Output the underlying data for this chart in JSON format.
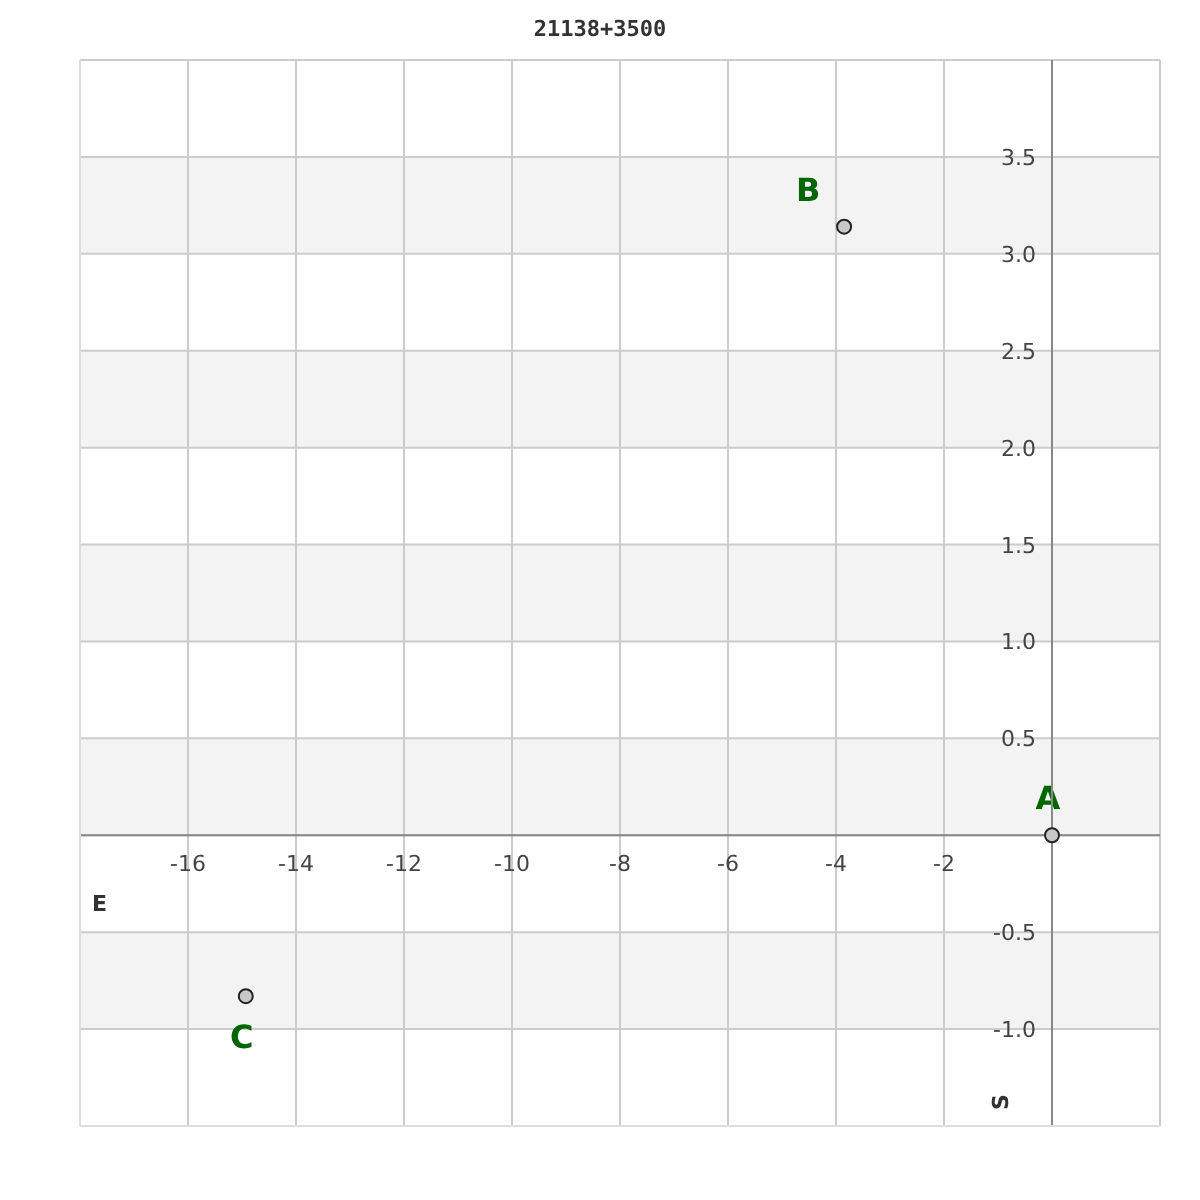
{
  "chart_data": {
    "type": "scatter",
    "title": "21138+3500",
    "xlabel": "E",
    "ylabel": "S",
    "x": [
      0,
      -3.85,
      -14.93
    ],
    "values": [
      0,
      3.14,
      -0.83
    ],
    "color": "#c8c8c8",
    "marker": "circle",
    "annotations": [
      {
        "text": "A",
        "x": 0,
        "y": 0
      },
      {
        "text": "B",
        "x": -3.85,
        "y": 3.14
      },
      {
        "text": "C",
        "x": -14.93,
        "y": -0.83
      }
    ],
    "xlim": [
      -18,
      2
    ],
    "ylim": [
      -1.5,
      4
    ],
    "xticks": [
      -16,
      -14,
      -12,
      -10,
      -8,
      -6,
      -4,
      -2
    ],
    "yticks": [
      {
        "value": -1,
        "label": "-1.0"
      },
      -0.5,
      {
        "value": 0,
        "label": null
      },
      0.5,
      {
        "value": 1,
        "label": "1.0"
      },
      1.5,
      {
        "value": 2,
        "label": "2.0"
      },
      2.5,
      {
        "value": 3,
        "label": "3.0"
      },
      3.5
    ],
    "grid": true
  }
}
